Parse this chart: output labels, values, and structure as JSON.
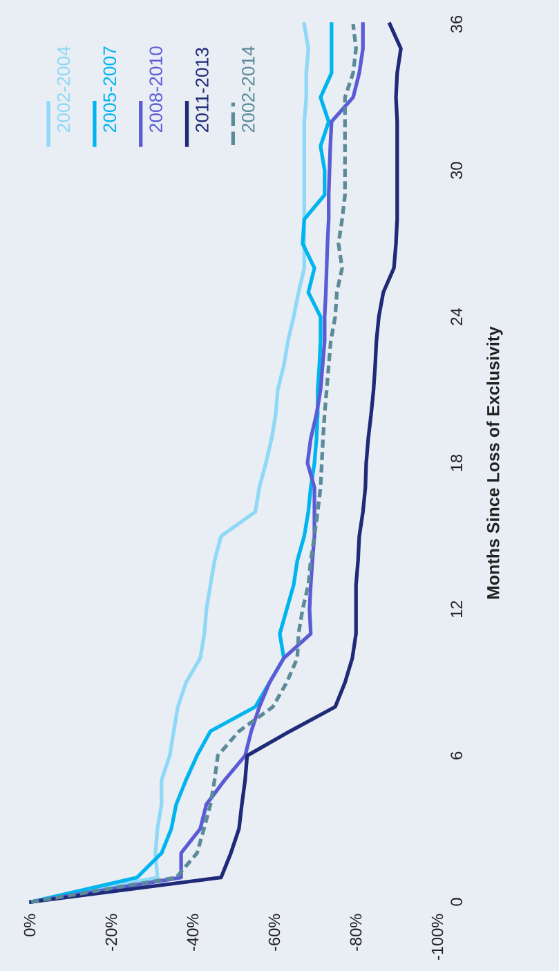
{
  "chart_data": {
    "type": "line",
    "orientation": "horizontal",
    "ylabel": "Months Since Loss of Exclusivity",
    "x": [
      0,
      1,
      2,
      3,
      4,
      5,
      6,
      7,
      8,
      9,
      10,
      11,
      12,
      13,
      14,
      15,
      16,
      17,
      18,
      19,
      20,
      21,
      22,
      23,
      24,
      25,
      26,
      27,
      28,
      29,
      30,
      31,
      32,
      33,
      34,
      35,
      36
    ],
    "xlim": [
      0,
      -100
    ],
    "xticks": [
      {
        "value": 0,
        "label": "0%"
      },
      {
        "value": -20,
        "label": "-20%"
      },
      {
        "value": -40,
        "label": "-40%"
      },
      {
        "value": -60,
        "label": "-60%"
      },
      {
        "value": -80,
        "label": "-80%"
      },
      {
        "value": -100,
        "label": "-100%"
      }
    ],
    "ylim": [
      0,
      36
    ],
    "yticks": [
      0,
      6,
      12,
      18,
      24,
      30,
      36
    ],
    "grid": false,
    "legend": "top left",
    "marker": "none",
    "series": [
      {
        "name": "2002-2004",
        "color": "#8fd8f8",
        "line_style": "solid",
        "values": [
          0,
          -31,
          -30.5,
          -31,
          -32,
          -32,
          -34,
          -35,
          -36,
          -38,
          -41.5,
          -42.5,
          -43,
          -44,
          -45,
          -46.6,
          -55,
          -56,
          -57.6,
          -59,
          -60,
          -60.5,
          -62,
          -63,
          -64.4,
          -65.6,
          -67,
          -67,
          -67,
          -67,
          -67,
          -67,
          -67,
          -67.5,
          -67.5,
          -68,
          -67
        ]
      },
      {
        "name": "2005-2007",
        "color": "#00b4f0",
        "line_style": "solid",
        "values": [
          0,
          -26,
          -32,
          -34.4,
          -35.6,
          -38,
          -40.7,
          -44,
          -55,
          -58.5,
          -62,
          -61,
          -62.7,
          -64.4,
          -65.3,
          -67,
          -68,
          -68.6,
          -69.5,
          -70,
          -70.3,
          -70.3,
          -70.7,
          -71,
          -71,
          -68,
          -69.5,
          -66.6,
          -67,
          -72,
          -72,
          -71,
          -73,
          -71,
          -73.7,
          -73.7,
          -73.7
        ]
      },
      {
        "name": "2008-2010",
        "color": "#5b5bd6",
        "line_style": "solid",
        "values": [
          0,
          -36.8,
          -36.8,
          -41.5,
          -43,
          -47.5,
          -52.5,
          -54,
          -56,
          -58.5,
          -62,
          -68.6,
          -68.3,
          -68.6,
          -69,
          -69.5,
          -69.5,
          -69.5,
          -67.8,
          -68.6,
          -70,
          -71,
          -71.5,
          -72,
          -72,
          -72.3,
          -72.5,
          -72.7,
          -73,
          -73,
          -73.2,
          -73.4,
          -73.7,
          -79,
          -80.5,
          -81.4,
          -81.4
        ]
      },
      {
        "name": "2011-2013",
        "color": "#1f2a78",
        "line_style": "solid",
        "values": [
          0,
          -46.6,
          -49,
          -51,
          -51.7,
          -52.5,
          -53,
          -63.5,
          -74.6,
          -77,
          -78.8,
          -79.7,
          -79.7,
          -79.7,
          -80.2,
          -80.5,
          -81.4,
          -82,
          -82.2,
          -82.7,
          -83.4,
          -84,
          -84.4,
          -84.7,
          -85.3,
          -86.4,
          -89,
          -89.5,
          -89.8,
          -89.8,
          -89.8,
          -89.8,
          -89.8,
          -89.5,
          -89.8,
          -90.7,
          -88
        ]
      },
      {
        "name": "2002-2014",
        "color": "#5b8a99",
        "line_style": "dashed",
        "values": [
          0,
          -35.6,
          -40.7,
          -42.4,
          -44,
          -45,
          -45.8,
          -51,
          -59.3,
          -62.7,
          -65.3,
          -65.6,
          -66.6,
          -68,
          -68.6,
          -69.5,
          -70.3,
          -71,
          -71.3,
          -71.6,
          -72,
          -72.5,
          -73,
          -73.5,
          -74.6,
          -75,
          -76.3,
          -75.4,
          -76.3,
          -77,
          -77,
          -77,
          -77,
          -77,
          -79,
          -79.7,
          -79
        ]
      }
    ]
  }
}
